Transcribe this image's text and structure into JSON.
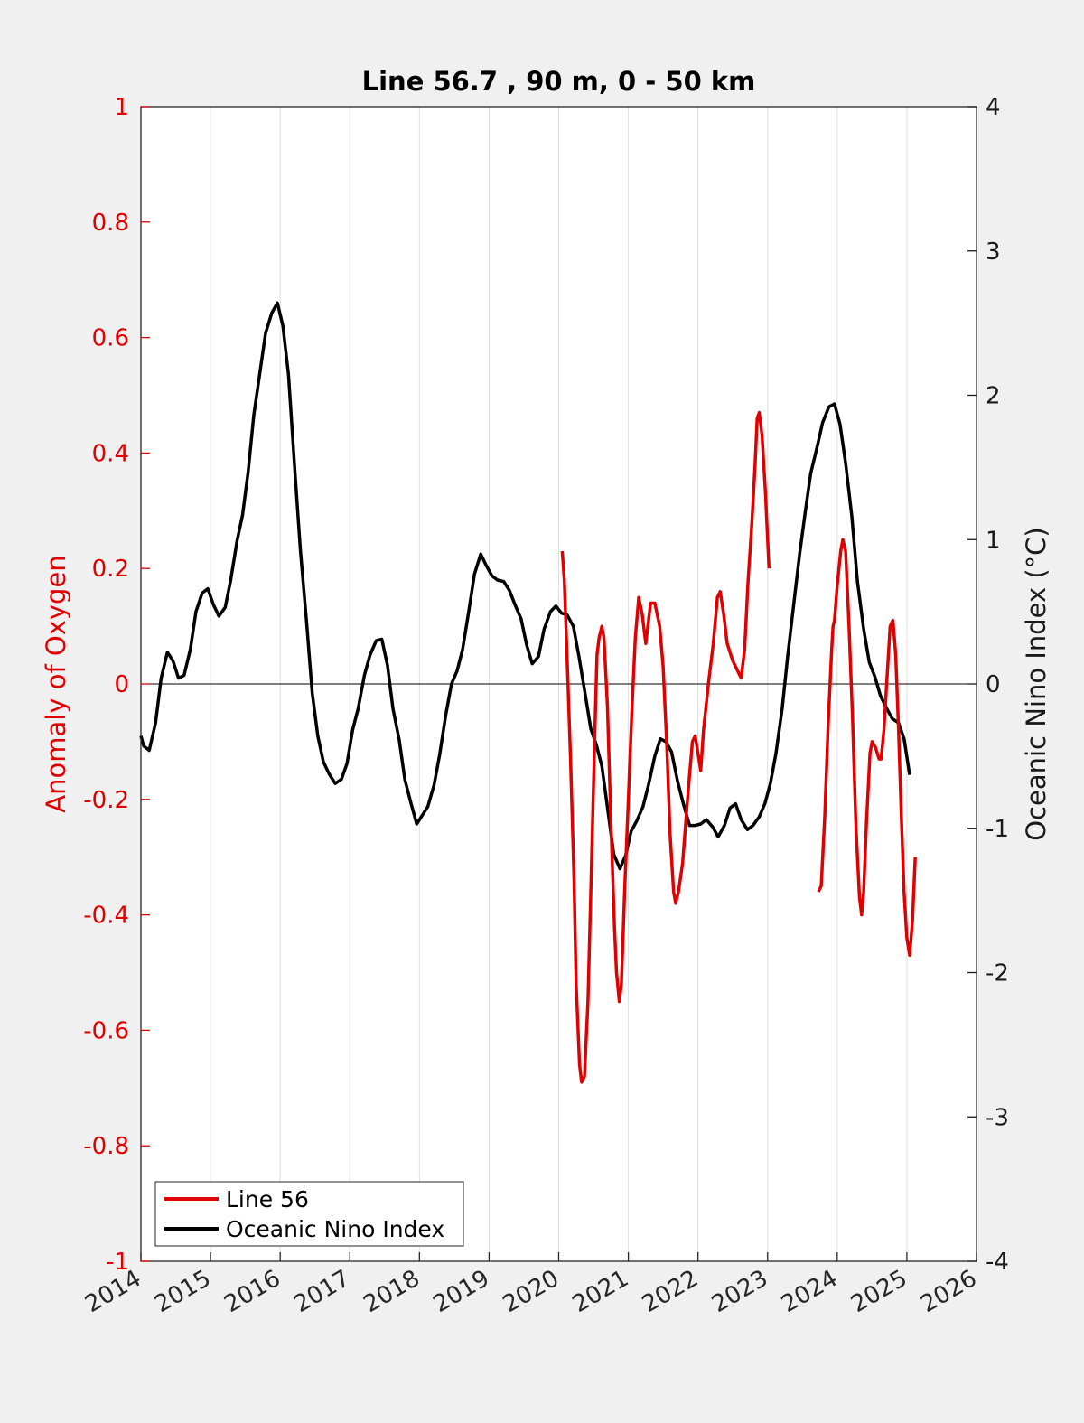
{
  "chart_data": {
    "type": "line",
    "title": "Line 56.7 , 90 m, 0 - 50 km",
    "xlabel": "",
    "ylabel_left": "Anomaly of Oxygen",
    "ylabel_right": "Oceanic Nino Index (°C)",
    "xlim": [
      2014,
      2026
    ],
    "ylim_left": [
      -1,
      1
    ],
    "ylim_right": [
      -4,
      4
    ],
    "x_ticks": [
      "2014",
      "2015",
      "2016",
      "2017",
      "2018",
      "2019",
      "2020",
      "2021",
      "2022",
      "2023",
      "2024",
      "2025",
      "2026"
    ],
    "y_left_ticks": [
      "1",
      "0.8",
      "0.6",
      "0.4",
      "0.2",
      "0",
      "-0.2",
      "-0.4",
      "-0.6",
      "-0.8",
      "-1"
    ],
    "y_right_ticks": [
      "4",
      "3",
      "2",
      "1",
      "0",
      "-1",
      "-2",
      "-3",
      "-4"
    ],
    "grid": "vertical",
    "legend_position": "bottom-left",
    "colors": {
      "line56": "#e00000",
      "oni": "#000000",
      "left_axis": "#e00000",
      "right_axis": "#1a1a1a"
    },
    "series": [
      {
        "name": "Line 56",
        "axis": "left",
        "color": "#e00000",
        "segments": [
          [
            [
              2020.05,
              0.23
            ],
            [
              2020.08,
              0.18
            ],
            [
              2020.12,
              0.05
            ],
            [
              2020.17,
              -0.13
            ],
            [
              2020.22,
              -0.34
            ],
            [
              2020.25,
              -0.52
            ],
            [
              2020.3,
              -0.66
            ],
            [
              2020.33,
              -0.69
            ],
            [
              2020.37,
              -0.68
            ],
            [
              2020.42,
              -0.55
            ],
            [
              2020.47,
              -0.32
            ],
            [
              2020.52,
              -0.08
            ],
            [
              2020.55,
              0.05
            ],
            [
              2020.58,
              0.08
            ],
            [
              2020.62,
              0.1
            ],
            [
              2020.65,
              0.08
            ],
            [
              2020.7,
              -0.04
            ],
            [
              2020.75,
              -0.24
            ],
            [
              2020.8,
              -0.42
            ],
            [
              2020.83,
              -0.5
            ],
            [
              2020.87,
              -0.55
            ],
            [
              2020.9,
              -0.52
            ],
            [
              2020.95,
              -0.35
            ],
            [
              2021.0,
              -0.2
            ],
            [
              2021.05,
              -0.05
            ],
            [
              2021.1,
              0.08
            ],
            [
              2021.15,
              0.15
            ],
            [
              2021.2,
              0.12
            ],
            [
              2021.25,
              0.07
            ],
            [
              2021.28,
              0.1
            ],
            [
              2021.32,
              0.14
            ],
            [
              2021.38,
              0.14
            ],
            [
              2021.45,
              0.1
            ],
            [
              2021.5,
              0.03
            ],
            [
              2021.55,
              -0.1
            ],
            [
              2021.6,
              -0.26
            ],
            [
              2021.65,
              -0.36
            ],
            [
              2021.68,
              -0.38
            ],
            [
              2021.72,
              -0.36
            ],
            [
              2021.78,
              -0.31
            ],
            [
              2021.85,
              -0.2
            ],
            [
              2021.92,
              -0.1
            ],
            [
              2021.96,
              -0.09
            ],
            [
              2022.0,
              -0.12
            ],
            [
              2022.04,
              -0.15
            ],
            [
              2022.08,
              -0.08
            ],
            [
              2022.15,
              0.0
            ],
            [
              2022.22,
              0.07
            ],
            [
              2022.28,
              0.15
            ],
            [
              2022.32,
              0.16
            ],
            [
              2022.37,
              0.12
            ],
            [
              2022.42,
              0.07
            ],
            [
              2022.5,
              0.04
            ],
            [
              2022.58,
              0.02
            ],
            [
              2022.62,
              0.01
            ],
            [
              2022.67,
              0.06
            ],
            [
              2022.72,
              0.18
            ],
            [
              2022.77,
              0.27
            ],
            [
              2022.82,
              0.38
            ],
            [
              2022.85,
              0.46
            ],
            [
              2022.88,
              0.47
            ],
            [
              2022.92,
              0.43
            ],
            [
              2022.97,
              0.33
            ],
            [
              2023.02,
              0.2
            ]
          ],
          [
            [
              2023.73,
              -0.36
            ],
            [
              2023.77,
              -0.35
            ],
            [
              2023.82,
              -0.23
            ],
            [
              2023.87,
              -0.07
            ],
            [
              2023.92,
              0.06
            ],
            [
              2023.94,
              0.1
            ],
            [
              2023.96,
              0.11
            ],
            [
              2024.0,
              0.17
            ],
            [
              2024.05,
              0.23
            ],
            [
              2024.08,
              0.25
            ],
            [
              2024.12,
              0.23
            ],
            [
              2024.17,
              0.1
            ],
            [
              2024.22,
              -0.06
            ],
            [
              2024.27,
              -0.25
            ],
            [
              2024.32,
              -0.37
            ],
            [
              2024.35,
              -0.4
            ],
            [
              2024.38,
              -0.36
            ],
            [
              2024.42,
              -0.24
            ],
            [
              2024.47,
              -0.12
            ],
            [
              2024.5,
              -0.1
            ],
            [
              2024.55,
              -0.11
            ],
            [
              2024.6,
              -0.13
            ],
            [
              2024.63,
              -0.13
            ],
            [
              2024.67,
              -0.08
            ],
            [
              2024.72,
              0.02
            ],
            [
              2024.76,
              0.1
            ],
            [
              2024.8,
              0.11
            ],
            [
              2024.84,
              0.05
            ],
            [
              2024.88,
              -0.08
            ],
            [
              2024.92,
              -0.23
            ],
            [
              2024.96,
              -0.36
            ],
            [
              2025.0,
              -0.44
            ],
            [
              2025.04,
              -0.47
            ],
            [
              2025.08,
              -0.41
            ],
            [
              2025.12,
              -0.3
            ]
          ]
        ]
      },
      {
        "name": "Oceanic Nino Index",
        "axis": "right",
        "color": "#000000",
        "x": [
          2014.0,
          2014.04,
          2014.12,
          2014.21,
          2014.29,
          2014.38,
          2014.46,
          2014.54,
          2014.62,
          2014.71,
          2014.79,
          2014.88,
          2014.96,
          2015.04,
          2015.12,
          2015.21,
          2015.29,
          2015.38,
          2015.46,
          2015.54,
          2015.62,
          2015.71,
          2015.79,
          2015.88,
          2015.96,
          2016.04,
          2016.12,
          2016.21,
          2016.29,
          2016.38,
          2016.46,
          2016.54,
          2016.62,
          2016.71,
          2016.79,
          2016.88,
          2016.96,
          2017.04,
          2017.12,
          2017.21,
          2017.29,
          2017.38,
          2017.46,
          2017.54,
          2017.62,
          2017.71,
          2017.79,
          2017.88,
          2017.96,
          2018.04,
          2018.12,
          2018.21,
          2018.29,
          2018.38,
          2018.46,
          2018.54,
          2018.62,
          2018.71,
          2018.79,
          2018.88,
          2018.96,
          2019.04,
          2019.12,
          2019.21,
          2019.29,
          2019.38,
          2019.46,
          2019.54,
          2019.62,
          2019.71,
          2019.79,
          2019.88,
          2019.96,
          2020.04,
          2020.12,
          2020.21,
          2020.29,
          2020.38,
          2020.46,
          2020.54,
          2020.62,
          2020.71,
          2020.79,
          2020.88,
          2020.96,
          2021.04,
          2021.12,
          2021.21,
          2021.29,
          2021.38,
          2021.46,
          2021.54,
          2021.62,
          2021.71,
          2021.79,
          2021.88,
          2021.96,
          2022.04,
          2022.12,
          2022.21,
          2022.29,
          2022.38,
          2022.46,
          2022.54,
          2022.62,
          2022.71,
          2022.79,
          2022.88,
          2022.96,
          2023.04,
          2023.12,
          2023.21,
          2023.29,
          2023.38,
          2023.46,
          2023.54,
          2023.62,
          2023.71,
          2023.79,
          2023.88,
          2023.96,
          2024.04,
          2024.12,
          2024.21,
          2024.29,
          2024.38,
          2024.46,
          2024.54,
          2024.62,
          2024.71,
          2024.79,
          2024.88,
          2024.96,
          2025.04
        ],
        "values": [
          -0.36,
          -0.43,
          -0.46,
          -0.27,
          0.04,
          0.22,
          0.16,
          0.04,
          0.06,
          0.24,
          0.5,
          0.63,
          0.66,
          0.55,
          0.47,
          0.53,
          0.72,
          0.99,
          1.17,
          1.47,
          1.86,
          2.16,
          2.43,
          2.57,
          2.64,
          2.48,
          2.14,
          1.48,
          0.93,
          0.42,
          -0.06,
          -0.36,
          -0.54,
          -0.63,
          -0.69,
          -0.66,
          -0.55,
          -0.32,
          -0.17,
          0.06,
          0.2,
          0.3,
          0.31,
          0.13,
          -0.17,
          -0.39,
          -0.66,
          -0.83,
          -0.97,
          -0.91,
          -0.85,
          -0.7,
          -0.49,
          -0.21,
          0.0,
          0.09,
          0.24,
          0.51,
          0.76,
          0.9,
          0.82,
          0.75,
          0.72,
          0.71,
          0.65,
          0.54,
          0.45,
          0.27,
          0.14,
          0.19,
          0.38,
          0.5,
          0.54,
          0.49,
          0.48,
          0.4,
          0.19,
          -0.07,
          -0.31,
          -0.42,
          -0.57,
          -0.89,
          -1.18,
          -1.28,
          -1.19,
          -1.02,
          -0.95,
          -0.85,
          -0.7,
          -0.5,
          -0.38,
          -0.4,
          -0.47,
          -0.68,
          -0.83,
          -0.98,
          -0.98,
          -0.97,
          -0.94,
          -0.99,
          -1.06,
          -0.98,
          -0.86,
          -0.83,
          -0.94,
          -1.01,
          -0.98,
          -0.92,
          -0.83,
          -0.69,
          -0.48,
          -0.17,
          0.2,
          0.57,
          0.9,
          1.19,
          1.46,
          1.64,
          1.81,
          1.92,
          1.94,
          1.8,
          1.53,
          1.16,
          0.71,
          0.38,
          0.15,
          0.05,
          -0.08,
          -0.17,
          -0.24,
          -0.27,
          -0.38,
          -0.63
        ]
      }
    ]
  }
}
